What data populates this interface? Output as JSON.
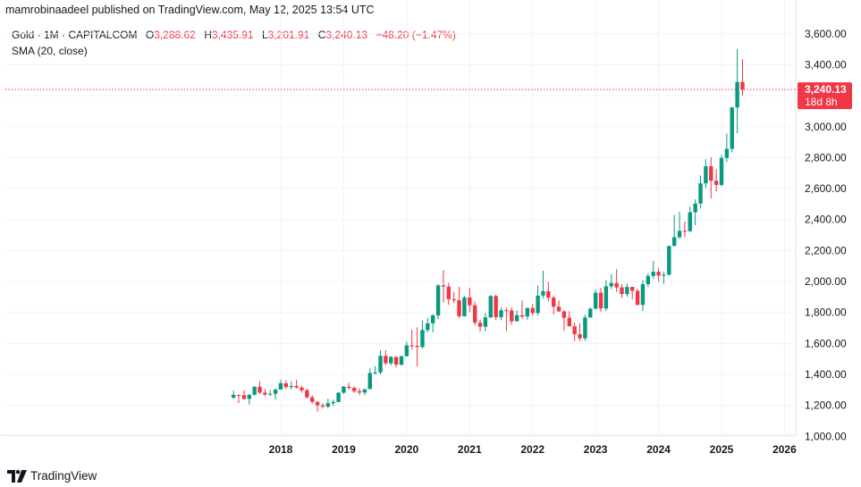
{
  "publisher_line": "mamrobinaadeel published on TradingView.com, May 12, 2025 13:54 UTC",
  "legend": {
    "symbol": "Gold · 1M · CAPITALCOM",
    "open_label": "O",
    "open_value": "3,288.62",
    "high_label": "H",
    "high_value": "3,435.91",
    "low_label": "L",
    "low_value": "3,201.91",
    "close_label": "C",
    "close_value": "3,240.13",
    "change": "−48.20 (−1.47%)",
    "indicator": "SMA (20, close)"
  },
  "last_price": {
    "value": 3240.13,
    "label": "3,240.13",
    "countdown": "18d 8h"
  },
  "brand": "TradingView",
  "colors": {
    "up": "#089981",
    "down": "#f23645",
    "grid": "#f0f3fa",
    "axis_text": "#131722",
    "price_line": "#f23645"
  },
  "chart_data": {
    "type": "candlestick",
    "interval": "1M",
    "x_axis": {
      "type": "date",
      "ticks": [
        "2018",
        "2019",
        "2020",
        "2021",
        "2022",
        "2023",
        "2024",
        "2025",
        "2026"
      ]
    },
    "y_axis": {
      "side": "right",
      "range": [
        950,
        3720
      ],
      "ticks": [
        1000,
        1200,
        1400,
        1600,
        1800,
        2000,
        2200,
        2400,
        2600,
        2800,
        3000,
        3200,
        3400,
        3600
      ],
      "tick_labels": [
        "1,000.00",
        "1,200.00",
        "1,400.00",
        "1,600.00",
        "1,800.00",
        "2,000.00",
        "2,200.00",
        "2,400.00",
        "2,600.00",
        "2,800.00",
        "3,000.00",
        "3,200.00",
        "3,400.00",
        "3,600.00"
      ],
      "hidden_tick_labels": [
        "3,200.00"
      ]
    },
    "grid": true,
    "candles": [
      {
        "t": "2017-04",
        "o": 1250,
        "h": 1295,
        "l": 1242,
        "c": 1268
      },
      {
        "t": "2017-05",
        "o": 1268,
        "h": 1270,
        "l": 1215,
        "c": 1266
      },
      {
        "t": "2017-06",
        "o": 1266,
        "h": 1296,
        "l": 1237,
        "c": 1242
      },
      {
        "t": "2017-07",
        "o": 1242,
        "h": 1275,
        "l": 1205,
        "c": 1268
      },
      {
        "t": "2017-08",
        "o": 1268,
        "h": 1325,
        "l": 1265,
        "c": 1320
      },
      {
        "t": "2017-09",
        "o": 1320,
        "h": 1357,
        "l": 1275,
        "c": 1282
      },
      {
        "t": "2017-10",
        "o": 1282,
        "h": 1306,
        "l": 1260,
        "c": 1270
      },
      {
        "t": "2017-11",
        "o": 1270,
        "h": 1300,
        "l": 1262,
        "c": 1275
      },
      {
        "t": "2017-12",
        "o": 1275,
        "h": 1310,
        "l": 1236,
        "c": 1302
      },
      {
        "t": "2018-01",
        "o": 1302,
        "h": 1366,
        "l": 1302,
        "c": 1343
      },
      {
        "t": "2018-02",
        "o": 1343,
        "h": 1362,
        "l": 1306,
        "c": 1318
      },
      {
        "t": "2018-03",
        "o": 1318,
        "h": 1356,
        "l": 1303,
        "c": 1325
      },
      {
        "t": "2018-04",
        "o": 1325,
        "h": 1365,
        "l": 1310,
        "c": 1315
      },
      {
        "t": "2018-05",
        "o": 1315,
        "h": 1327,
        "l": 1282,
        "c": 1298
      },
      {
        "t": "2018-06",
        "o": 1298,
        "h": 1308,
        "l": 1245,
        "c": 1252
      },
      {
        "t": "2018-07",
        "o": 1252,
        "h": 1265,
        "l": 1211,
        "c": 1223
      },
      {
        "t": "2018-08",
        "o": 1223,
        "h": 1225,
        "l": 1160,
        "c": 1200
      },
      {
        "t": "2018-09",
        "o": 1200,
        "h": 1214,
        "l": 1180,
        "c": 1192
      },
      {
        "t": "2018-10",
        "o": 1192,
        "h": 1243,
        "l": 1182,
        "c": 1214
      },
      {
        "t": "2018-11",
        "o": 1214,
        "h": 1237,
        "l": 1196,
        "c": 1222
      },
      {
        "t": "2018-12",
        "o": 1222,
        "h": 1285,
        "l": 1221,
        "c": 1282
      },
      {
        "t": "2019-01",
        "o": 1282,
        "h": 1326,
        "l": 1275,
        "c": 1321
      },
      {
        "t": "2019-02",
        "o": 1321,
        "h": 1347,
        "l": 1302,
        "c": 1313
      },
      {
        "t": "2019-03",
        "o": 1313,
        "h": 1324,
        "l": 1280,
        "c": 1292
      },
      {
        "t": "2019-04",
        "o": 1292,
        "h": 1310,
        "l": 1266,
        "c": 1283
      },
      {
        "t": "2019-05",
        "o": 1283,
        "h": 1306,
        "l": 1266,
        "c": 1305
      },
      {
        "t": "2019-06",
        "o": 1305,
        "h": 1439,
        "l": 1305,
        "c": 1409
      },
      {
        "t": "2019-07",
        "o": 1409,
        "h": 1453,
        "l": 1400,
        "c": 1413
      },
      {
        "t": "2019-08",
        "o": 1413,
        "h": 1555,
        "l": 1400,
        "c": 1520
      },
      {
        "t": "2019-09",
        "o": 1520,
        "h": 1557,
        "l": 1460,
        "c": 1472
      },
      {
        "t": "2019-10",
        "o": 1472,
        "h": 1518,
        "l": 1458,
        "c": 1513
      },
      {
        "t": "2019-11",
        "o": 1513,
        "h": 1516,
        "l": 1445,
        "c": 1463
      },
      {
        "t": "2019-12",
        "o": 1463,
        "h": 1523,
        "l": 1456,
        "c": 1517
      },
      {
        "t": "2020-01",
        "o": 1517,
        "h": 1611,
        "l": 1517,
        "c": 1588
      },
      {
        "t": "2020-02",
        "o": 1588,
        "h": 1689,
        "l": 1562,
        "c": 1585
      },
      {
        "t": "2020-03",
        "o": 1585,
        "h": 1704,
        "l": 1451,
        "c": 1577
      },
      {
        "t": "2020-04",
        "o": 1577,
        "h": 1748,
        "l": 1567,
        "c": 1687
      },
      {
        "t": "2020-05",
        "o": 1687,
        "h": 1765,
        "l": 1670,
        "c": 1730
      },
      {
        "t": "2020-06",
        "o": 1730,
        "h": 1790,
        "l": 1671,
        "c": 1781
      },
      {
        "t": "2020-07",
        "o": 1781,
        "h": 1984,
        "l": 1757,
        "c": 1975
      },
      {
        "t": "2020-08",
        "o": 1975,
        "h": 2075,
        "l": 1863,
        "c": 1967
      },
      {
        "t": "2020-09",
        "o": 1967,
        "h": 1992,
        "l": 1849,
        "c": 1886
      },
      {
        "t": "2020-10",
        "o": 1886,
        "h": 1933,
        "l": 1860,
        "c": 1879
      },
      {
        "t": "2020-11",
        "o": 1879,
        "h": 1965,
        "l": 1764,
        "c": 1776
      },
      {
        "t": "2020-12",
        "o": 1776,
        "h": 1907,
        "l": 1773,
        "c": 1897
      },
      {
        "t": "2021-01",
        "o": 1897,
        "h": 1959,
        "l": 1802,
        "c": 1847
      },
      {
        "t": "2021-02",
        "o": 1847,
        "h": 1871,
        "l": 1717,
        "c": 1734
      },
      {
        "t": "2021-03",
        "o": 1734,
        "h": 1755,
        "l": 1676,
        "c": 1708
      },
      {
        "t": "2021-04",
        "o": 1708,
        "h": 1797,
        "l": 1678,
        "c": 1768
      },
      {
        "t": "2021-05",
        "o": 1768,
        "h": 1912,
        "l": 1765,
        "c": 1906
      },
      {
        "t": "2021-06",
        "o": 1906,
        "h": 1916,
        "l": 1750,
        "c": 1770
      },
      {
        "t": "2021-07",
        "o": 1770,
        "h": 1833,
        "l": 1750,
        "c": 1814
      },
      {
        "t": "2021-08",
        "o": 1814,
        "h": 1832,
        "l": 1681,
        "c": 1813
      },
      {
        "t": "2021-09",
        "o": 1813,
        "h": 1834,
        "l": 1721,
        "c": 1743
      },
      {
        "t": "2021-10",
        "o": 1743,
        "h": 1814,
        "l": 1746,
        "c": 1783
      },
      {
        "t": "2021-11",
        "o": 1783,
        "h": 1877,
        "l": 1758,
        "c": 1774
      },
      {
        "t": "2021-12",
        "o": 1774,
        "h": 1831,
        "l": 1753,
        "c": 1829
      },
      {
        "t": "2022-01",
        "o": 1829,
        "h": 1853,
        "l": 1780,
        "c": 1797
      },
      {
        "t": "2022-02",
        "o": 1797,
        "h": 1974,
        "l": 1781,
        "c": 1909
      },
      {
        "t": "2022-03",
        "o": 1909,
        "h": 2070,
        "l": 1890,
        "c": 1937
      },
      {
        "t": "2022-04",
        "o": 1937,
        "h": 1998,
        "l": 1872,
        "c": 1896
      },
      {
        "t": "2022-05",
        "o": 1896,
        "h": 1910,
        "l": 1787,
        "c": 1837
      },
      {
        "t": "2022-06",
        "o": 1837,
        "h": 1879,
        "l": 1805,
        "c": 1807
      },
      {
        "t": "2022-07",
        "o": 1807,
        "h": 1814,
        "l": 1681,
        "c": 1766
      },
      {
        "t": "2022-08",
        "o": 1766,
        "h": 1808,
        "l": 1709,
        "c": 1711
      },
      {
        "t": "2022-09",
        "o": 1711,
        "h": 1735,
        "l": 1615,
        "c": 1660
      },
      {
        "t": "2022-10",
        "o": 1660,
        "h": 1730,
        "l": 1617,
        "c": 1633
      },
      {
        "t": "2022-11",
        "o": 1633,
        "h": 1786,
        "l": 1616,
        "c": 1768
      },
      {
        "t": "2022-12",
        "o": 1768,
        "h": 1833,
        "l": 1765,
        "c": 1824
      },
      {
        "t": "2023-01",
        "o": 1824,
        "h": 1949,
        "l": 1823,
        "c": 1928
      },
      {
        "t": "2023-02",
        "o": 1928,
        "h": 1959,
        "l": 1805,
        "c": 1826
      },
      {
        "t": "2023-03",
        "o": 1826,
        "h": 2009,
        "l": 1810,
        "c": 1969
      },
      {
        "t": "2023-04",
        "o": 1969,
        "h": 2048,
        "l": 1950,
        "c": 1990
      },
      {
        "t": "2023-05",
        "o": 1990,
        "h": 2079,
        "l": 1932,
        "c": 1962
      },
      {
        "t": "2023-06",
        "o": 1962,
        "h": 1983,
        "l": 1893,
        "c": 1919
      },
      {
        "t": "2023-07",
        "o": 1919,
        "h": 1987,
        "l": 1902,
        "c": 1965
      },
      {
        "t": "2023-08",
        "o": 1965,
        "h": 1966,
        "l": 1885,
        "c": 1940
      },
      {
        "t": "2023-09",
        "o": 1940,
        "h": 1953,
        "l": 1846,
        "c": 1849
      },
      {
        "t": "2023-10",
        "o": 1849,
        "h": 2009,
        "l": 1810,
        "c": 1983
      },
      {
        "t": "2023-11",
        "o": 1983,
        "h": 2052,
        "l": 1965,
        "c": 2036
      },
      {
        "t": "2023-12",
        "o": 2036,
        "h": 2135,
        "l": 2016,
        "c": 2063
      },
      {
        "t": "2024-01",
        "o": 2063,
        "h": 2088,
        "l": 2001,
        "c": 2039
      },
      {
        "t": "2024-02",
        "o": 2039,
        "h": 2065,
        "l": 1985,
        "c": 2044
      },
      {
        "t": "2024-03",
        "o": 2044,
        "h": 2222,
        "l": 2039,
        "c": 2230
      },
      {
        "t": "2024-04",
        "o": 2230,
        "h": 2431,
        "l": 2229,
        "c": 2286
      },
      {
        "t": "2024-05",
        "o": 2286,
        "h": 2450,
        "l": 2277,
        "c": 2327
      },
      {
        "t": "2024-06",
        "o": 2327,
        "h": 2387,
        "l": 2287,
        "c": 2326
      },
      {
        "t": "2024-07",
        "o": 2326,
        "h": 2483,
        "l": 2318,
        "c": 2447
      },
      {
        "t": "2024-08",
        "o": 2447,
        "h": 2531,
        "l": 2364,
        "c": 2503
      },
      {
        "t": "2024-09",
        "o": 2503,
        "h": 2685,
        "l": 2471,
        "c": 2634
      },
      {
        "t": "2024-10",
        "o": 2634,
        "h": 2790,
        "l": 2604,
        "c": 2744
      },
      {
        "t": "2024-11",
        "o": 2744,
        "h": 2801,
        "l": 2536,
        "c": 2651
      },
      {
        "t": "2024-12",
        "o": 2651,
        "h": 2726,
        "l": 2583,
        "c": 2624
      },
      {
        "t": "2025-01",
        "o": 2624,
        "h": 2817,
        "l": 2614,
        "c": 2798
      },
      {
        "t": "2025-02",
        "o": 2798,
        "h": 2956,
        "l": 2772,
        "c": 2857
      },
      {
        "t": "2025-03",
        "o": 2857,
        "h": 3128,
        "l": 2833,
        "c": 3124
      },
      {
        "t": "2025-04",
        "o": 3124,
        "h": 3500,
        "l": 2957,
        "c": 3288
      },
      {
        "t": "2025-05",
        "o": 3288.62,
        "h": 3435.91,
        "l": 3201.91,
        "c": 3240.13
      }
    ]
  }
}
